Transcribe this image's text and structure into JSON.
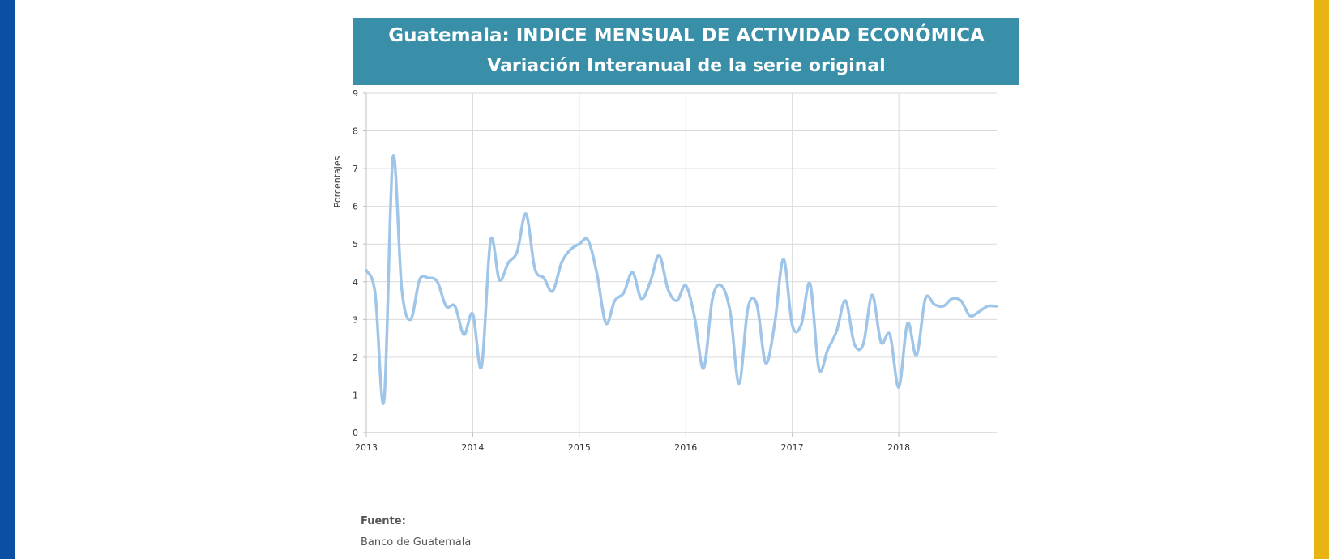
{
  "chart_data": {
    "type": "line",
    "title": "Guatemala: INDICE MENSUAL DE ACTIVIDAD ECONÓMICA",
    "subtitle": "Variación Interanual de la serie original",
    "xlabel": "",
    "ylabel": "Porcentajes",
    "xlim": [
      2013,
      2018.92
    ],
    "ylim": [
      0,
      9
    ],
    "x_ticks": [
      "2013",
      "2014",
      "2015",
      "2016",
      "2017",
      "2018"
    ],
    "y_ticks": [
      "0",
      "1",
      "2",
      "3",
      "4",
      "5",
      "6",
      "7",
      "8",
      "9"
    ],
    "grid": true,
    "legend": "none",
    "line_color": "#9fc5e8",
    "series": [
      {
        "x": [
          2013.0,
          2013.083,
          2013.167,
          2013.25,
          2013.333,
          2013.417,
          2013.5,
          2013.583,
          2013.667,
          2013.75,
          2013.833,
          2013.917,
          2014.0,
          2014.083,
          2014.167,
          2014.25,
          2014.333,
          2014.417,
          2014.5,
          2014.583,
          2014.667,
          2014.75,
          2014.833,
          2014.917,
          2015.0,
          2015.083,
          2015.167,
          2015.25,
          2015.333,
          2015.417,
          2015.5,
          2015.583,
          2015.667,
          2015.75,
          2015.833,
          2015.917,
          2016.0,
          2016.083,
          2016.167,
          2016.25,
          2016.333,
          2016.417,
          2016.5,
          2016.583,
          2016.667,
          2016.75,
          2016.833,
          2016.917,
          2017.0,
          2017.083,
          2017.167,
          2017.25,
          2017.333,
          2017.417,
          2017.5,
          2017.583,
          2017.667,
          2017.75,
          2017.833,
          2017.917,
          2018.0,
          2018.083,
          2018.167,
          2018.25,
          2018.333,
          2018.417,
          2018.5,
          2018.583,
          2018.667,
          2018.75,
          2018.833,
          2018.917
        ],
        "values": [
          4.3,
          3.7,
          0.85,
          7.3,
          3.8,
          3.0,
          4.05,
          4.1,
          4.0,
          3.35,
          3.35,
          2.6,
          3.15,
          1.75,
          5.1,
          4.05,
          4.5,
          4.8,
          5.8,
          4.35,
          4.1,
          3.75,
          4.5,
          4.85,
          5.0,
          5.1,
          4.2,
          2.9,
          3.5,
          3.7,
          4.25,
          3.55,
          4.0,
          4.7,
          3.8,
          3.5,
          3.9,
          3.05,
          1.7,
          3.55,
          3.9,
          3.2,
          1.3,
          3.3,
          3.4,
          1.85,
          2.85,
          4.6,
          2.85,
          2.85,
          3.95,
          1.7,
          2.2,
          2.7,
          3.5,
          2.35,
          2.35,
          3.65,
          2.4,
          2.6,
          1.2,
          2.9,
          2.05,
          3.55,
          3.4,
          3.35,
          3.55,
          3.5,
          3.1,
          3.2,
          3.35,
          3.35
        ]
      }
    ]
  },
  "source": {
    "label": "Fuente:",
    "text": "Banco de Guatemala"
  }
}
